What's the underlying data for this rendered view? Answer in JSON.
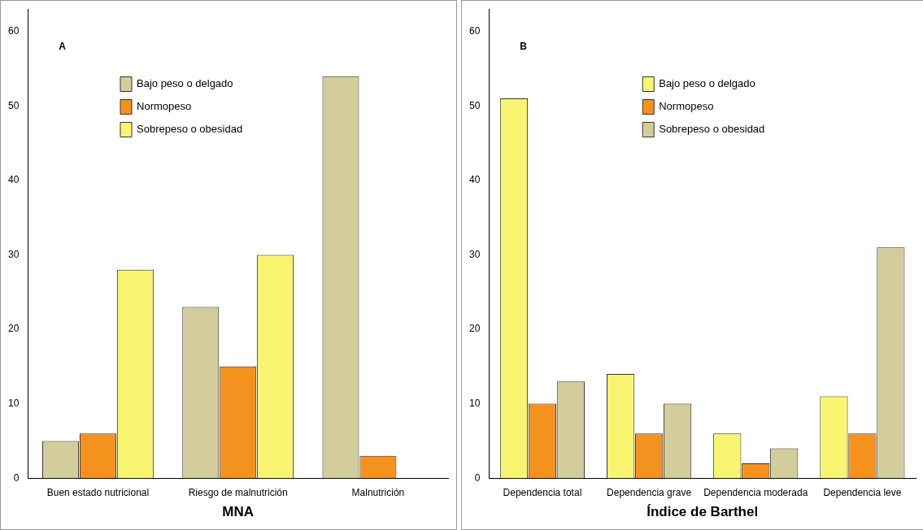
{
  "chart_data": [
    {
      "type": "bar",
      "xlabel": "MNA",
      "annotations": [
        "A"
      ],
      "categories": [
        "Buen estado nutricional",
        "Riesgo de malnutrición",
        "Malnutrición"
      ],
      "series": [
        {
          "name": "Bajo peso o delgado",
          "color": "#d3cd9c",
          "values": [
            5,
            23,
            54
          ]
        },
        {
          "name": "Normopeso",
          "color": "#f5921e",
          "values": [
            6,
            15,
            3
          ]
        },
        {
          "name": "Sobrepeso o obesidad",
          "color": "#f9f570",
          "values": [
            28,
            30,
            null
          ]
        }
      ],
      "ylim": [
        0,
        63
      ],
      "yticks": [
        0,
        10,
        20,
        30,
        40,
        50,
        60
      ],
      "grid": false,
      "legend": "top"
    },
    {
      "type": "bar",
      "xlabel": "Índice de Barthel",
      "annotations": [
        "B"
      ],
      "categories": [
        "Dependencia total",
        "Dependencia grave",
        "Dependencia moderada",
        "Dependencia leve"
      ],
      "series": [
        {
          "name": "Bajo peso o delgado",
          "color": "#f9f570",
          "values": [
            51,
            14,
            6,
            11
          ]
        },
        {
          "name": "Normopeso",
          "color": "#f5921e",
          "values": [
            10,
            6,
            2,
            6
          ]
        },
        {
          "name": "Sobrepeso o obesidad",
          "color": "#d3cd9c",
          "values": [
            13,
            10,
            4,
            31
          ]
        }
      ],
      "ylim": [
        0,
        63
      ],
      "yticks": [
        0,
        10,
        20,
        30,
        40,
        50,
        60
      ],
      "grid": false,
      "legend": "top"
    }
  ]
}
